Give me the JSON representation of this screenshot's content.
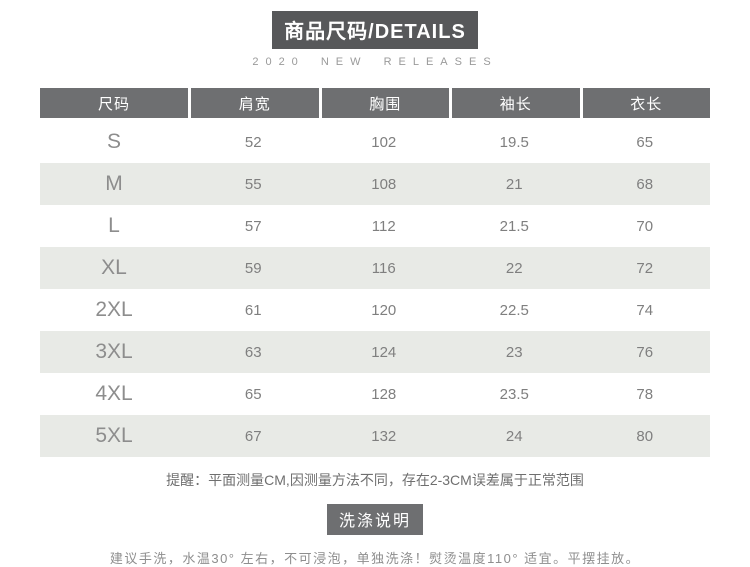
{
  "header": {
    "title": "商品尺码/DETAILS",
    "subtitle": "2020 NEW RELEASES"
  },
  "size_table": {
    "columns": [
      "尺码",
      "肩宽",
      "胸围",
      "袖长",
      "衣长"
    ],
    "rows": [
      {
        "size": "S",
        "values": [
          "52",
          "102",
          "19.5",
          "65"
        ]
      },
      {
        "size": "M",
        "values": [
          "55",
          "108",
          "21",
          "68"
        ]
      },
      {
        "size": "L",
        "values": [
          "57",
          "112",
          "21.5",
          "70"
        ]
      },
      {
        "size": "XL",
        "values": [
          "59",
          "116",
          "22",
          "72"
        ]
      },
      {
        "size": "2XL",
        "values": [
          "61",
          "120",
          "22.5",
          "74"
        ]
      },
      {
        "size": "3XL",
        "values": [
          "63",
          "124",
          "23",
          "76"
        ]
      },
      {
        "size": "4XL",
        "values": [
          "65",
          "128",
          "23.5",
          "78"
        ]
      },
      {
        "size": "5XL",
        "values": [
          "67",
          "132",
          "24",
          "80"
        ]
      }
    ]
  },
  "notes": {
    "measurement_note": "提醒：平面测量CM,因测量方法不同，存在2-3CM误差属于正常范围",
    "wash_title": "洗涤说明",
    "wash_note": "建议手洗，水温30° 左右，不可浸泡，单独洗涤！熨烫温度110° 适宜。平摆挂放。"
  },
  "colors": {
    "badge_bg": "#57585a",
    "table_header_bg": "#6e6f71",
    "alt_row_bg": "#e8eae6",
    "value_text": "#7f7f7f",
    "size_text": "#8d8d8d",
    "note_text": "#6f6f6f",
    "wash_note_text": "#8e8e8e",
    "subtitle_text": "#9a9a9a"
  }
}
